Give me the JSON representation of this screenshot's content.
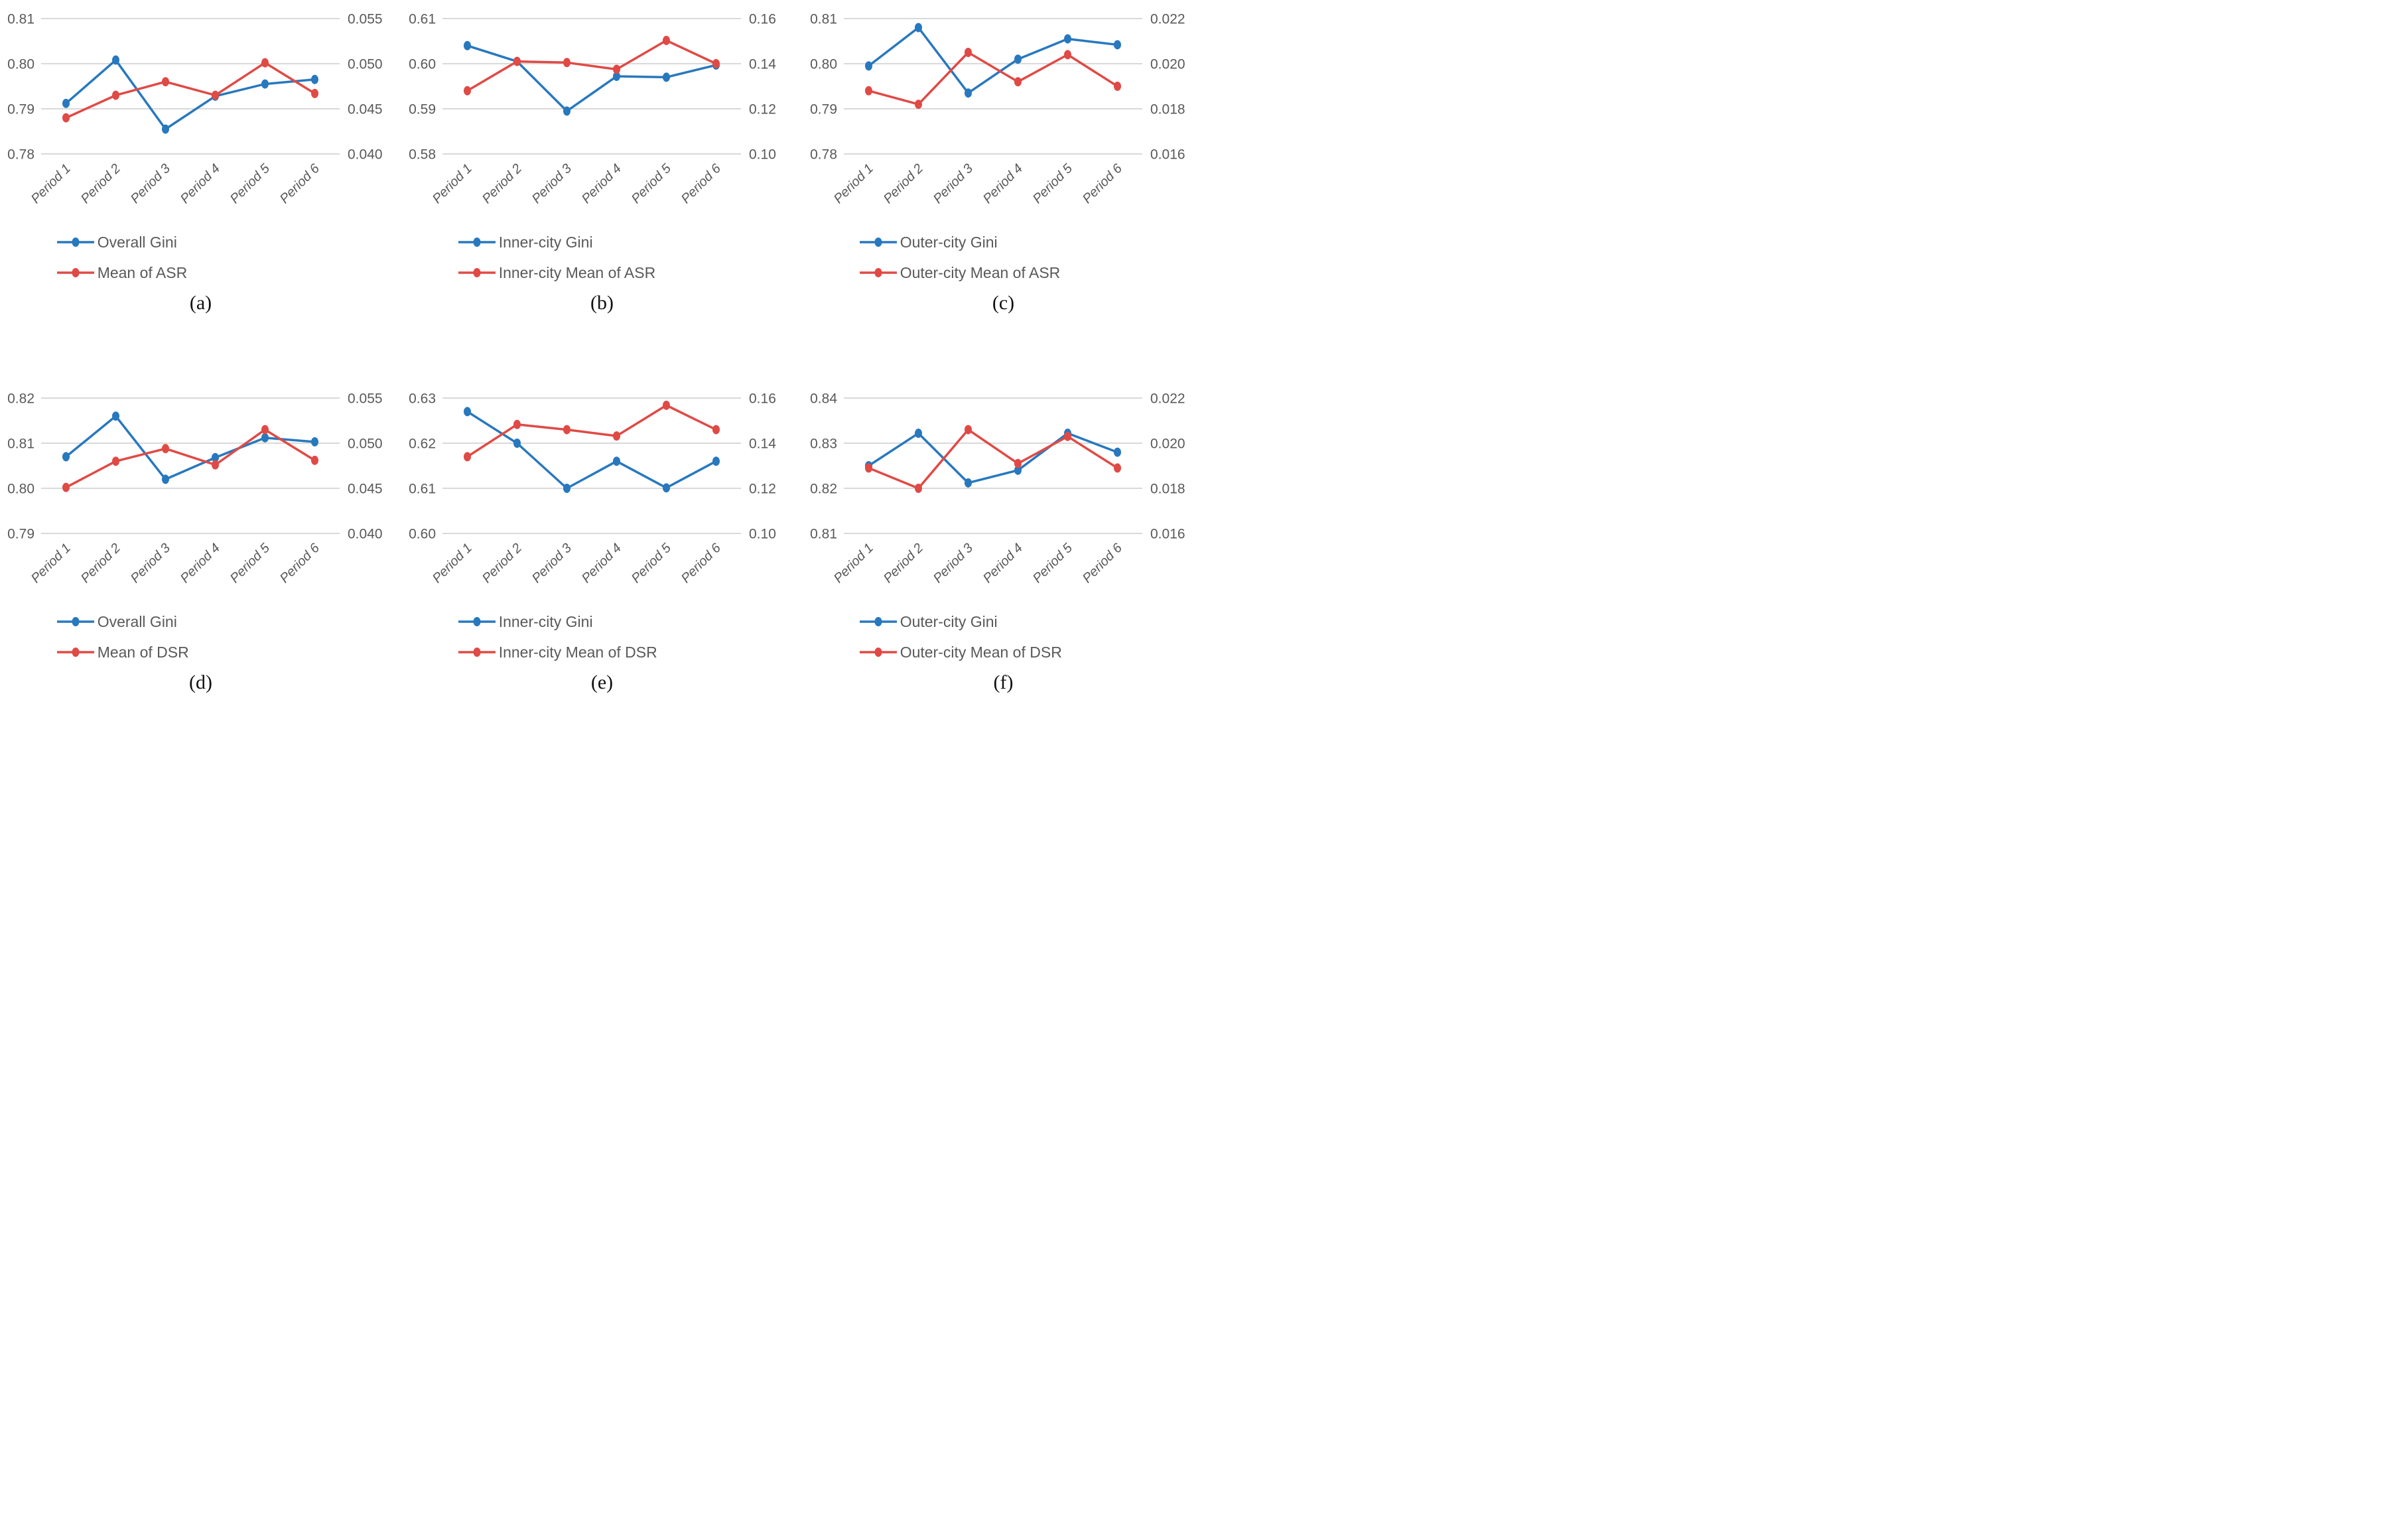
{
  "colors": {
    "blue": "#2878BE",
    "red": "#E04A45",
    "gridline": "#D9D9D9",
    "tick_text": "#595959",
    "caption_text": "#111111"
  },
  "chart_data": [
    {
      "type": "line",
      "caption": "(a)",
      "categories": [
        "Period 1",
        "Period 2",
        "Period 3",
        "Period 4",
        "Period 5",
        "Period 6"
      ],
      "grid": "horizontal",
      "legend_position": "bottom",
      "left_axis": {
        "min": 0.78,
        "max": 0.81,
        "tick_labels": [
          "0.78",
          "0.79",
          "0.80",
          "0.81"
        ]
      },
      "right_axis": {
        "min": 0.04,
        "max": 0.055,
        "tick_labels": [
          "0.040",
          "0.045",
          "0.050",
          "0.055"
        ]
      },
      "series": [
        {
          "name": "Overall Gini",
          "color": "blue",
          "axis": "left",
          "values": [
            0.7912,
            0.8008,
            0.7855,
            0.7928,
            0.7955,
            0.7965
          ]
        },
        {
          "name": "Mean of ASR",
          "color": "red",
          "axis": "right",
          "values": [
            0.044,
            0.0465,
            0.048,
            0.0465,
            0.0501,
            0.0467
          ]
        }
      ]
    },
    {
      "type": "line",
      "caption": "(b)",
      "categories": [
        "Period 1",
        "Period 2",
        "Period 3",
        "Period 4",
        "Period 5",
        "Period 6"
      ],
      "grid": "horizontal",
      "legend_position": "bottom",
      "left_axis": {
        "min": 0.58,
        "max": 0.61,
        "tick_labels": [
          "0.58",
          "0.59",
          "0.60",
          "0.61"
        ]
      },
      "right_axis": {
        "min": 0.1,
        "max": 0.16,
        "tick_labels": [
          "0.10",
          "0.12",
          "0.14",
          "0.16"
        ]
      },
      "series": [
        {
          "name": "Inner-city Gini",
          "color": "blue",
          "axis": "left",
          "values": [
            0.604,
            0.6005,
            0.5895,
            0.5972,
            0.597,
            0.5997
          ]
        },
        {
          "name": "Inner-city Mean of ASR",
          "color": "red",
          "axis": "right",
          "values": [
            0.128,
            0.141,
            0.1405,
            0.1375,
            0.1503,
            0.14
          ]
        }
      ]
    },
    {
      "type": "line",
      "caption": "(c)",
      "categories": [
        "Period 1",
        "Period 2",
        "Period 3",
        "Period 4",
        "Period 5",
        "Period 6"
      ],
      "grid": "horizontal",
      "legend_position": "bottom",
      "left_axis": {
        "min": 0.78,
        "max": 0.81,
        "tick_labels": [
          "0.78",
          "0.79",
          "0.80",
          "0.81"
        ]
      },
      "right_axis": {
        "min": 0.016,
        "max": 0.022,
        "tick_labels": [
          "0.016",
          "0.018",
          "0.020",
          "0.022"
        ]
      },
      "series": [
        {
          "name": "Outer-city Gini",
          "color": "blue",
          "axis": "left",
          "values": [
            0.7995,
            0.808,
            0.7935,
            0.801,
            0.8055,
            0.8042
          ]
        },
        {
          "name": "Outer-city Mean of ASR",
          "color": "red",
          "axis": "right",
          "values": [
            0.0188,
            0.0182,
            0.0205,
            0.0192,
            0.0204,
            0.019
          ]
        }
      ]
    },
    {
      "type": "line",
      "caption": "(d)",
      "categories": [
        "Period 1",
        "Period 2",
        "Period 3",
        "Period 4",
        "Period 5",
        "Period 6"
      ],
      "grid": "horizontal",
      "legend_position": "bottom",
      "left_axis": {
        "min": 0.79,
        "max": 0.82,
        "tick_labels": [
          "0.79",
          "0.80",
          "0.81",
          "0.82"
        ]
      },
      "right_axis": {
        "min": 0.04,
        "max": 0.055,
        "tick_labels": [
          "0.040",
          "0.045",
          "0.050",
          "0.055"
        ]
      },
      "series": [
        {
          "name": "Overall Gini",
          "color": "blue",
          "axis": "left",
          "values": [
            0.807,
            0.816,
            0.802,
            0.8068,
            0.8112,
            0.8103
          ]
        },
        {
          "name": "Mean of DSR",
          "color": "red",
          "axis": "right",
          "values": [
            0.0451,
            0.048,
            0.0494,
            0.0476,
            0.0515,
            0.0481
          ]
        }
      ]
    },
    {
      "type": "line",
      "caption": "(e)",
      "categories": [
        "Period 1",
        "Period 2",
        "Period 3",
        "Period 4",
        "Period 5",
        "Period 6"
      ],
      "grid": "horizontal",
      "legend_position": "bottom",
      "left_axis": {
        "min": 0.6,
        "max": 0.63,
        "tick_labels": [
          "0.60",
          "0.61",
          "0.62",
          "0.63"
        ]
      },
      "right_axis": {
        "min": 0.1,
        "max": 0.16,
        "tick_labels": [
          "0.10",
          "0.12",
          "0.14",
          "0.16"
        ]
      },
      "series": [
        {
          "name": "Inner-city Gini",
          "color": "blue",
          "axis": "left",
          "values": [
            0.627,
            0.62,
            0.61,
            0.616,
            0.6101,
            0.616
          ]
        },
        {
          "name": "Inner-city Mean of DSR",
          "color": "red",
          "axis": "right",
          "values": [
            0.134,
            0.1483,
            0.146,
            0.1432,
            0.1568,
            0.146
          ]
        }
      ]
    },
    {
      "type": "line",
      "caption": "(f)",
      "categories": [
        "Period 1",
        "Period 2",
        "Period 3",
        "Period 4",
        "Period 5",
        "Period 6"
      ],
      "grid": "horizontal",
      "legend_position": "bottom",
      "left_axis": {
        "min": 0.81,
        "max": 0.84,
        "tick_labels": [
          "0.81",
          "0.82",
          "0.83",
          "0.84"
        ]
      },
      "right_axis": {
        "min": 0.016,
        "max": 0.022,
        "tick_labels": [
          "0.016",
          "0.018",
          "0.020",
          "0.022"
        ]
      },
      "series": [
        {
          "name": "Outer-city Gini",
          "color": "blue",
          "axis": "left",
          "values": [
            0.825,
            0.8322,
            0.8212,
            0.824,
            0.8322,
            0.828
          ]
        },
        {
          "name": "Outer-city Mean of DSR",
          "color": "red",
          "axis": "right",
          "values": [
            0.0189,
            0.018,
            0.0206,
            0.0191,
            0.0203,
            0.0189
          ]
        }
      ]
    }
  ]
}
